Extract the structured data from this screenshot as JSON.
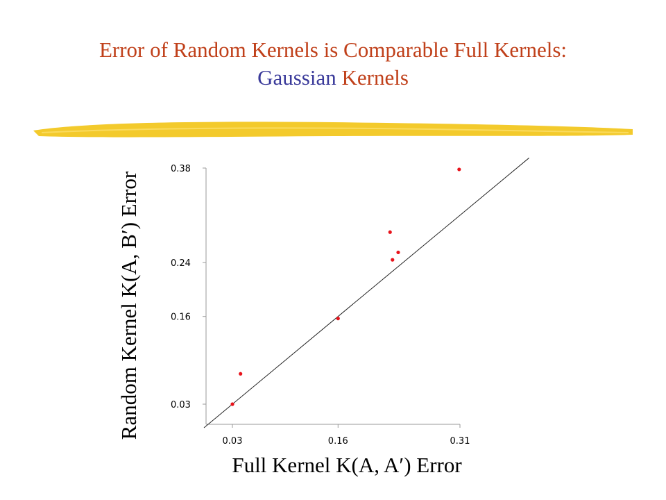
{
  "slide": {
    "title_line1": "Error of Random Kernels is Comparable Full Kernels:",
    "title_line2_part1": "Gaussian",
    "title_line2_part2": " Kernels"
  },
  "colors": {
    "title": "#c0401a",
    "title_accent": "#3a3a9a",
    "brush": "#f2c51a",
    "points": "#e8131b"
  },
  "chart_data": {
    "type": "scatter",
    "title": "",
    "xlabel": "Full Kernel K(A, A′) Error",
    "ylabel": "Random Kernel K(A, B′) Error",
    "xlim": [
      0.0,
      0.4
    ],
    "ylim": [
      0.0,
      0.38
    ],
    "xticks": [
      "0.03",
      "0.16",
      "0.31"
    ],
    "xtick_values": [
      0.03,
      0.16,
      0.31
    ],
    "yticks": [
      "0.38",
      "0.24",
      "0.16",
      "0.03"
    ],
    "ytick_values": [
      0.38,
      0.24,
      0.16,
      0.03
    ],
    "reference_line": "y = x",
    "points": [
      {
        "x": 0.03,
        "y": 0.03
      },
      {
        "x": 0.04,
        "y": 0.075
      },
      {
        "x": 0.16,
        "y": 0.157
      },
      {
        "x": 0.224,
        "y": 0.285
      },
      {
        "x": 0.227,
        "y": 0.244
      },
      {
        "x": 0.234,
        "y": 0.255
      },
      {
        "x": 0.309,
        "y": 0.378
      }
    ]
  }
}
